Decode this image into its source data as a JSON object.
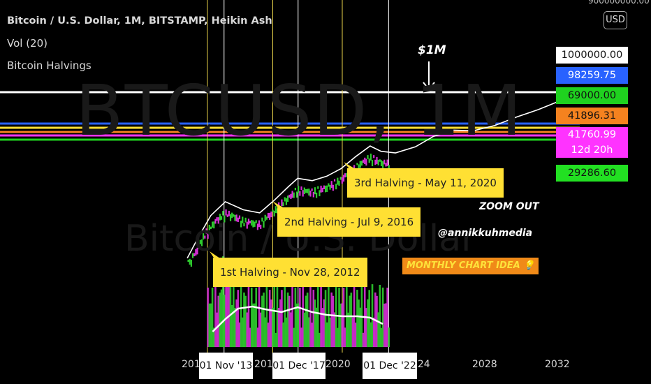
{
  "header": {
    "title": "Bitcoin / U.S. Dollar, 1M, BITSTAMP, Heikin Ash",
    "volume": "Vol (20)",
    "indicator": "Bitcoin Halvings"
  },
  "currency_button": "USD",
  "top_price_partial": "900000000.00",
  "watermark": {
    "symbol": "BTCUSD, 1M",
    "name": "Bitcoin / U.S. Dollar"
  },
  "price_labels": [
    {
      "text": "1000000.00",
      "bg": "#ffffff",
      "fg": "#111111"
    },
    {
      "text": "98259.75",
      "bg": "#2962ff",
      "fg": "#ffffff"
    },
    {
      "text": "69000.00",
      "bg": "#1fd21f",
      "fg": "#111111"
    },
    {
      "text": "41896.31",
      "bg": "#f5821f",
      "fg": "#111111"
    },
    {
      "text": "41760.99",
      "bg": "#ff33ff",
      "fg": "#ffffff"
    },
    {
      "text": "12d 20h",
      "bg": "#ff33ff",
      "fg": "#ffffff"
    },
    {
      "text": "29286.60",
      "bg": "#22e022",
      "fg": "#111111"
    }
  ],
  "annotations": {
    "one_million": "$1M",
    "zoom_out": "ZOOM OUT",
    "handle": "@annikkuhmedia",
    "idea": "MONTHLY CHART IDEA 💡"
  },
  "halvings": [
    {
      "label": "1st Halving - Nov 28, 2012"
    },
    {
      "label": "2nd Halving - Jul 9, 2016"
    },
    {
      "label": "3rd Halving - May 11, 2020"
    }
  ],
  "x_axis": {
    "ticks": [
      "2012",
      "2016",
      "2020",
      "2024",
      "2028",
      "2032"
    ],
    "badges": [
      "01 Nov '13",
      "01 Dec '17",
      "01 Dec '22"
    ]
  },
  "colors": {
    "up": "#2ecc2e",
    "down": "#d62fd6",
    "halving_line": "#e8d24a",
    "horizontal_lines": [
      "#ffffff",
      "#2962ff",
      "#ffe033",
      "#f5821f",
      "#ff33ff",
      "#1fd21f"
    ]
  },
  "chart_data": {
    "type": "line",
    "title": "Bitcoin / U.S. Dollar, 1M, BITSTAMP, Heikin Ash",
    "xlabel": "",
    "ylabel": "",
    "y_scale": "log",
    "x_range": [
      2011.4,
      2033.4
    ],
    "horizontal_levels": [
      1000000,
      98259.75,
      69000,
      41896.31,
      41760.99,
      29286.6
    ],
    "halving_dates": [
      2012.91,
      2016.52,
      2020.36
    ],
    "marked_dates": [
      2013.83,
      2017.92,
      2022.92
    ],
    "projection_curve": {
      "x": [
        2011.8,
        2012.4,
        2013.1,
        2013.9,
        2014.9,
        2015.8,
        2016.6,
        2017.4,
        2017.9,
        2018.7,
        2019.5,
        2020.3,
        2021.1,
        2021.9,
        2022.5,
        2023.3,
        2024.4,
        2025.4,
        2026.5,
        2027.6,
        2028.8,
        2030.0,
        2031.2,
        2032.4,
        2033.0,
        2033.3
      ],
      "y": [
        250,
        700,
        2100,
        4200,
        2800,
        2400,
        4500,
        9000,
        13500,
        12000,
        15000,
        22000,
        40000,
        68000,
        52000,
        48000,
        65000,
        110000,
        150000,
        145000,
        190000,
        290000,
        420000,
        650000,
        1000000,
        850000
      ]
    },
    "volume_ma": {
      "x": [
        2013.2,
        2013.9,
        2014.6,
        2015.4,
        2016.1,
        2017.0,
        2017.9,
        2018.7,
        2019.5,
        2020.4,
        2021.2,
        2021.9,
        2022.6
      ],
      "v": [
        22,
        40,
        55,
        58,
        54,
        50,
        57,
        50,
        46,
        44,
        44,
        42,
        33
      ]
    }
  }
}
